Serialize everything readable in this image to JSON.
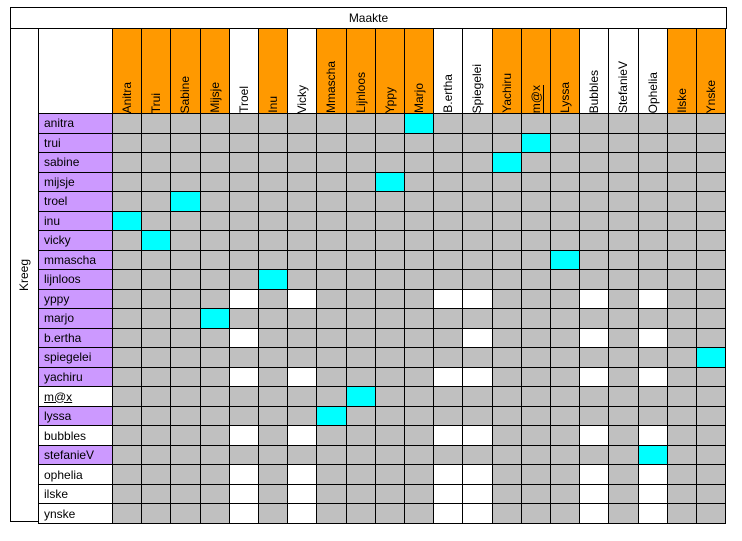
{
  "title": "Maakte",
  "row_axis_label": "Kreeg",
  "colors": {
    "orange": "#ff9900",
    "purple": "#cc99ff",
    "gray": "#c0c0c0",
    "cyan": "#00ffff",
    "white": "#ffffff"
  },
  "columns": [
    {
      "label": "Anitra",
      "color": "orange"
    },
    {
      "label": "Trui",
      "color": "orange"
    },
    {
      "label": "Sabine",
      "color": "orange"
    },
    {
      "label": "Mijsje",
      "color": "orange"
    },
    {
      "label": "Troel",
      "color": "white"
    },
    {
      "label": "Inu",
      "color": "orange"
    },
    {
      "label": "Vicky",
      "color": "white"
    },
    {
      "label": "Mmascha",
      "color": "orange"
    },
    {
      "label": "Lijnloos",
      "color": "orange"
    },
    {
      "label": "Yppy",
      "color": "orange"
    },
    {
      "label": "Marjo",
      "color": "orange"
    },
    {
      "label": "B.ertha",
      "color": "white"
    },
    {
      "label": "Spiegelei",
      "color": "white"
    },
    {
      "label": "Yachiru",
      "color": "orange"
    },
    {
      "label": "m@x",
      "color": "orange",
      "underline": true
    },
    {
      "label": "Lyssa",
      "color": "orange"
    },
    {
      "label": "Bubbles",
      "color": "white"
    },
    {
      "label": "StefanieV",
      "color": "white"
    },
    {
      "label": "Ophelia",
      "color": "white"
    },
    {
      "label": "Ilske",
      "color": "orange"
    },
    {
      "label": "Ynske",
      "color": "orange"
    }
  ],
  "rows": [
    {
      "label": "anitra",
      "color": "purple"
    },
    {
      "label": "trui",
      "color": "purple"
    },
    {
      "label": "sabine",
      "color": "purple"
    },
    {
      "label": "mijsje",
      "color": "purple"
    },
    {
      "label": "troel",
      "color": "purple"
    },
    {
      "label": "inu",
      "color": "purple"
    },
    {
      "label": "vicky",
      "color": "purple"
    },
    {
      "label": "mmascha",
      "color": "purple"
    },
    {
      "label": "lijnloos",
      "color": "purple"
    },
    {
      "label": "yppy",
      "color": "purple"
    },
    {
      "label": "marjo",
      "color": "purple"
    },
    {
      "label": "b.ertha",
      "color": "purple"
    },
    {
      "label": "spiegelei",
      "color": "purple"
    },
    {
      "label": "yachiru",
      "color": "purple"
    },
    {
      "label": "m@x",
      "color": "white",
      "underline": true
    },
    {
      "label": "lyssa",
      "color": "purple"
    },
    {
      "label": "bubbles",
      "color": "white"
    },
    {
      "label": "stefanieV",
      "color": "purple"
    },
    {
      "label": "ophelia",
      "color": "white"
    },
    {
      "label": "ilske",
      "color": "white"
    },
    {
      "label": "ynske",
      "color": "white"
    }
  ],
  "grid_rows": [
    "GGGGGGGGGGCGGGGGGGGGG",
    "GGGGGGGGGGGGGGCGGGGGG",
    "GGGGGGGGGGGGGCGGGGGGG",
    "GGGGGGGGGCGGGGGGGGGGG",
    "GGCGGGGGGGGGGGGGGGGGG",
    "CGGGGGGGGGGGGGGGGGGGG",
    "GCGGGGGGGGGGGGGGGGGGG",
    "GGGGGGGGGGGGGGGCGGGGG",
    "GGGGGCGGGGGGGGGGGGGGG",
    "GGGGWGWGGGGWWGGGWGWGG",
    "GGGCGGGGGGGGGGGGGGGGG",
    "GGGGWGGGGGGGWGGGWGWGG",
    "GGGGGGGGGGGGGGGGGGGGC",
    "GGGGWGWGGGGWWGGGWGWGG",
    "GGGGGGGGCGGGGGGGGGGGG",
    "GGGGGGGCGGGGGGGGGGGGG",
    "GGGGWGWGGGGWWGGGWGWGG",
    "GGGGGGGGGGGGGGGGGGCGG",
    "GGGGWGWGGGGWWGGGWGWGG",
    "GGGGWGWGGGGWWGGGWGWGG",
    "GGGGWGWGGGGWWGGGWGWGG"
  ]
}
